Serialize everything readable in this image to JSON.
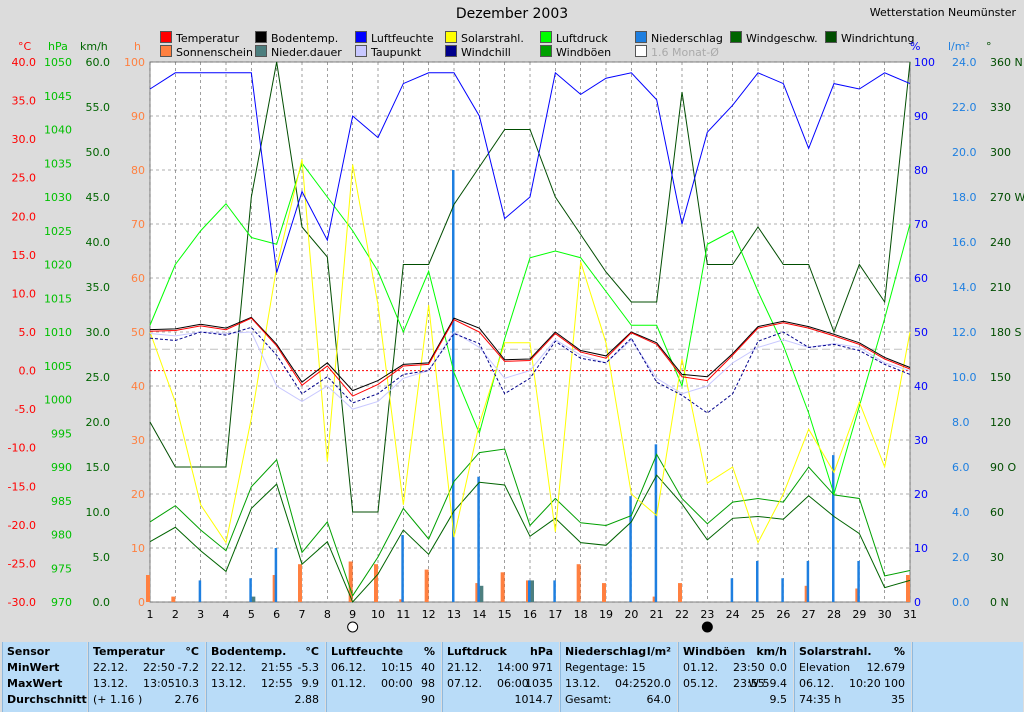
{
  "title": "Dezember 2003",
  "station": "Wetterstation Neumünster",
  "units": {
    "temp": "°C",
    "hpa": "hPa",
    "kmh": "km/h",
    "h": "h",
    "pct": "%",
    "lm2": "l/m²",
    "deg": "°"
  },
  "legend": [
    {
      "label": "Temperatur",
      "color": "#ff0000"
    },
    {
      "label": "Bodentemp.",
      "color": "#000000"
    },
    {
      "label": "Luftfeuchte",
      "color": "#0000ff"
    },
    {
      "label": "Solarstrahl.",
      "color": "#ffff00"
    },
    {
      "label": "Luftdruck",
      "color": "#00ff00"
    },
    {
      "label": "Niederschlag",
      "color": "#1e7fe0"
    },
    {
      "label": "Windgeschw.",
      "color": "#006400"
    },
    {
      "label": "Windrichtung",
      "color": "#004d00"
    },
    {
      "label": "Sonnenschein",
      "color": "#ff8040"
    },
    {
      "label": "Nieder.dauer",
      "color": "#4d7f7f"
    },
    {
      "label": "Taupunkt",
      "color": "#c8c8ff"
    },
    {
      "label": "Windchill",
      "color": "#00008b"
    },
    {
      "label": "Windböen",
      "color": "#00a000"
    },
    {
      "label": "1.6 Monat-Ø",
      "color": "#ffffff"
    }
  ],
  "axes": {
    "temp_ticks": [
      "40.0",
      "35.0",
      "30.0",
      "25.0",
      "20.0",
      "15.0",
      "10.0",
      "5.0",
      "0.0",
      "-5.0",
      "-10.0",
      "-15.0",
      "-20.0",
      "-25.0",
      "-30.0"
    ],
    "hpa_ticks": [
      "1050",
      "1045",
      "1040",
      "1035",
      "1030",
      "1025",
      "1020",
      "1015",
      "1010",
      "1005",
      "1000",
      "995",
      "990",
      "985",
      "980",
      "975",
      "970"
    ],
    "kmh_ticks": [
      "60.0",
      "55.0",
      "50.0",
      "45.0",
      "40.0",
      "35.0",
      "30.0",
      "25.0",
      "20.0",
      "15.0",
      "10.0",
      "5.0",
      "0.0"
    ],
    "h_ticks": [
      "100",
      "90",
      "80",
      "70",
      "60",
      "50",
      "40",
      "30",
      "20",
      "10",
      "0"
    ],
    "pct_ticks": [
      "100",
      "90",
      "80",
      "70",
      "60",
      "50",
      "40",
      "30",
      "20",
      "10",
      "0"
    ],
    "lm2_ticks": [
      "24.0",
      "22.0",
      "20.0",
      "18.0",
      "16.0",
      "14.0",
      "12.0",
      "10.0",
      "8.0",
      "6.0",
      "4.0",
      "2.0",
      "0.0"
    ],
    "deg_ticks": [
      "360 N",
      "330",
      "300",
      "270 W",
      "240",
      "210",
      "180 S",
      "150",
      "120",
      "90 O",
      "60",
      "30",
      "0 N"
    ],
    "x_ticks": [
      "1",
      "2",
      "3",
      "4",
      "5",
      "6",
      "7",
      "8",
      "9",
      "10",
      "11",
      "12",
      "13",
      "14",
      "15",
      "16",
      "17",
      "18",
      "19",
      "20",
      "21",
      "22",
      "23",
      "24",
      "25",
      "26",
      "27",
      "28",
      "29",
      "30",
      "31"
    ]
  },
  "chart_data": {
    "type": "line",
    "x": [
      1,
      2,
      3,
      4,
      5,
      6,
      7,
      8,
      9,
      10,
      11,
      12,
      13,
      14,
      15,
      16,
      17,
      18,
      19,
      20,
      21,
      22,
      23,
      24,
      25,
      26,
      27,
      28,
      29,
      30,
      31
    ],
    "xlim": [
      1,
      31
    ],
    "series": [
      {
        "name": "Temperatur",
        "axis": "°C",
        "ylim": [
          -30,
          40
        ],
        "color": "#ff0000",
        "values": [
          5.1,
          5.2,
          5.8,
          5.3,
          6.8,
          3.2,
          -1.9,
          0.6,
          -3.3,
          -1.8,
          0.6,
          0.8,
          6.6,
          5.0,
          1.2,
          1.3,
          4.8,
          2.4,
          1.6,
          4.9,
          3.4,
          -0.8,
          -1.3,
          2.0,
          5.5,
          6.2,
          5.5,
          4.5,
          3.4,
          1.5,
          0.2
        ]
      },
      {
        "name": "Bodentemp.",
        "axis": "°C",
        "ylim": [
          -30,
          40
        ],
        "color": "#000000",
        "values": [
          5.3,
          5.4,
          6.0,
          5.5,
          6.9,
          3.4,
          -1.5,
          1.0,
          -2.6,
          -1.3,
          0.8,
          1.0,
          6.8,
          5.5,
          1.4,
          1.5,
          5.0,
          2.6,
          1.9,
          5.0,
          3.6,
          -0.5,
          -0.8,
          2.2,
          5.7,
          6.4,
          5.7,
          4.7,
          3.6,
          1.7,
          0.4
        ]
      },
      {
        "name": "Taupunkt",
        "axis": "°C",
        "ylim": [
          -30,
          40
        ],
        "color": "#c8c8ff",
        "values": [
          4.8,
          4.5,
          5.0,
          4.8,
          5.0,
          -2.0,
          -4.0,
          -2.0,
          -5.0,
          -4.0,
          -1.0,
          0.0,
          5.0,
          3.0,
          -1.0,
          0.0,
          4.0,
          2.0,
          1.0,
          4.0,
          -1.0,
          -3.0,
          -2.0,
          1.0,
          3.0,
          4.0,
          3.0,
          3.5,
          3.0,
          1.0,
          0.0
        ]
      },
      {
        "name": "Windchill",
        "axis": "°C",
        "ylim": [
          -30,
          40
        ],
        "color": "#00008b",
        "values": [
          4.2,
          3.9,
          5.0,
          4.6,
          5.6,
          2.0,
          -3.0,
          -0.8,
          -4.2,
          -3.0,
          -0.5,
          0.0,
          4.8,
          3.5,
          -3.0,
          -1.0,
          3.8,
          1.6,
          1.0,
          4.2,
          -1.5,
          -3.2,
          -5.5,
          -3.0,
          3.8,
          5.0,
          3.0,
          3.4,
          2.6,
          0.8,
          -0.5
        ]
      },
      {
        "name": "Luftfeuchte",
        "axis": "%",
        "ylim": [
          0,
          100
        ],
        "color": "#0000ff",
        "values": [
          95,
          98,
          98,
          98,
          98,
          61,
          76,
          67,
          90,
          86,
          96,
          98,
          98,
          90,
          71,
          75,
          98,
          94,
          97,
          98,
          93,
          70,
          87,
          92,
          98,
          96,
          84,
          96,
          95,
          98,
          96
        ]
      },
      {
        "name": "Solarstrahl.",
        "axis": "%",
        "ylim": [
          0,
          100
        ],
        "color": "#ffff00",
        "values": [
          50,
          37,
          18,
          11,
          34,
          62,
          82,
          26,
          81,
          55,
          18,
          55,
          12,
          33,
          48,
          48,
          13,
          63,
          48,
          20,
          16,
          45,
          22,
          25,
          11,
          20,
          32,
          24,
          37,
          25,
          50
        ]
      },
      {
        "name": "Luftdruck",
        "axis": "hPa",
        "ylim": [
          970,
          1050
        ],
        "color": "#00ff00",
        "values": [
          1011,
          1020,
          1025,
          1029,
          1024,
          1023,
          1035,
          1030,
          1025,
          1019,
          1010,
          1019,
          1004,
          995,
          1009,
          1021,
          1022,
          1021,
          1016,
          1011,
          1011,
          1002,
          1023,
          1025,
          1016,
          1008,
          998,
          986,
          999,
          1012,
          1026
        ]
      },
      {
        "name": "Windgeschw.",
        "axis": "km/h",
        "ylim": [
          0,
          60
        ],
        "color": "#006400",
        "values": [
          6.7,
          8.3,
          5.7,
          3.4,
          10.4,
          13.1,
          4.2,
          6.7,
          0.0,
          3.1,
          8.0,
          5.3,
          10.1,
          13.3,
          13.0,
          7.3,
          9.3,
          6.6,
          6.3,
          8.9,
          14.1,
          10.9,
          6.9,
          9.3,
          9.5,
          9.2,
          11.8,
          9.5,
          7.6,
          1.6,
          2.4
        ]
      },
      {
        "name": "Windböen",
        "axis": "km/h",
        "ylim": [
          0,
          60
        ],
        "color": "#00a000",
        "values": [
          8.9,
          10.7,
          8.0,
          5.7,
          12.8,
          15.8,
          5.5,
          8.9,
          0.7,
          5.0,
          10.4,
          7.0,
          13.4,
          16.6,
          17.0,
          8.5,
          11.5,
          8.8,
          8.5,
          9.6,
          16.4,
          11.5,
          8.7,
          11.1,
          11.5,
          11.1,
          15.0,
          11.9,
          11.5,
          2.9,
          3.5
        ]
      },
      {
        "name": "Windrichtung",
        "axis": "°",
        "ylim": [
          0,
          360
        ],
        "color": "#004d00",
        "values": [
          120,
          90,
          90,
          90,
          270,
          360,
          250,
          230,
          60,
          60,
          225,
          225,
          265,
          290,
          315,
          315,
          270,
          245,
          220,
          200,
          200,
          340,
          225,
          225,
          250,
          225,
          225,
          180,
          225,
          200,
          360
        ]
      },
      {
        "name": "Niederschlag",
        "axis": "l/m²",
        "ylim": [
          0,
          25
        ],
        "type": "bar",
        "color": "#1e7fe0",
        "values": [
          0,
          0,
          1.0,
          0,
          1.1,
          2.5,
          0,
          0,
          0,
          0,
          3.1,
          0,
          20.0,
          5.8,
          0,
          1.0,
          1.0,
          0,
          0,
          4.9,
          7.3,
          0,
          0,
          1.1,
          1.9,
          1.1,
          1.9,
          6.8,
          1.9,
          0,
          0
        ]
      },
      {
        "name": "Sonnenschein",
        "axis": "h",
        "ylim": [
          0,
          100
        ],
        "type": "bar",
        "color": "#ff8040",
        "values": [
          5,
          1,
          0,
          0,
          0,
          5,
          7,
          0,
          7.5,
          7,
          0.5,
          6,
          0,
          3.5,
          5.5,
          4,
          0,
          7,
          3.5,
          0,
          1,
          3.5,
          0,
          0,
          0,
          0,
          3,
          0,
          2.5,
          0,
          5
        ]
      },
      {
        "name": "Nieder.dauer",
        "axis": "h",
        "ylim": [
          0,
          100
        ],
        "type": "bar",
        "color": "#4d7f7f",
        "values": [
          0,
          0,
          0,
          0,
          1,
          0,
          0,
          0,
          0,
          0,
          0,
          0,
          0,
          3,
          0,
          4,
          0,
          0,
          0,
          0,
          0,
          0,
          0,
          0,
          0,
          0,
          0,
          0,
          0,
          0,
          0
        ]
      }
    ],
    "reference_lines": [
      {
        "axis": "°C",
        "value": 0,
        "color": "#ff0000",
        "style": "dotted"
      },
      {
        "axis": "°C",
        "value": 2.76,
        "color": "#c0c0c0",
        "style": "dashed"
      }
    ],
    "moon_phases": [
      {
        "day": 9,
        "phase": "full"
      },
      {
        "day": 23,
        "phase": "new"
      }
    ]
  },
  "table": [
    {
      "header": [
        "Sensor",
        "",
        ""
      ],
      "rows": [
        [
          "MinWert",
          "",
          ""
        ],
        [
          "MaxWert",
          "",
          ""
        ],
        [
          "Durchschnitt",
          "",
          ""
        ]
      ]
    },
    {
      "header": [
        "Temperatur",
        "",
        "°C"
      ],
      "rows": [
        [
          "22.12.",
          "22:50",
          "-7.2"
        ],
        [
          "13.12.",
          "13:05",
          "10.3"
        ],
        [
          "(+ 1.16 )",
          "",
          "2.76"
        ]
      ]
    },
    {
      "header": [
        "Bodentemp.",
        "",
        "°C"
      ],
      "rows": [
        [
          "22.12.",
          "21:55",
          "-5.3"
        ],
        [
          "13.12.",
          "12:55",
          "9.9"
        ],
        [
          "",
          "",
          "2.88"
        ]
      ]
    },
    {
      "header": [
        "Luftfeuchte",
        "",
        "%"
      ],
      "rows": [
        [
          "06.12.",
          "10:15",
          "40"
        ],
        [
          "01.12.",
          "00:00",
          "98"
        ],
        [
          "",
          "",
          "90"
        ]
      ]
    },
    {
      "header": [
        "Luftdruck",
        "",
        "hPa"
      ],
      "rows": [
        [
          "21.12.",
          "14:00",
          "971"
        ],
        [
          "07.12.",
          "06:00",
          "1035"
        ],
        [
          "",
          "",
          "1014.7"
        ]
      ]
    },
    {
      "header": [
        "Niederschlag",
        "",
        "l/m²"
      ],
      "rows": [
        [
          "Regentage: 15",
          "",
          ""
        ],
        [
          "13.12.",
          "04:25",
          "20.0"
        ],
        [
          "Gesamt:",
          "",
          "64.0"
        ]
      ]
    },
    {
      "header": [
        "Windböen",
        "",
        "km/h"
      ],
      "rows": [
        [
          "01.12.",
          "23:50",
          "0.0"
        ],
        [
          "05.12.",
          "23:55",
          "W 59.4"
        ],
        [
          "",
          "",
          "9.5"
        ]
      ]
    },
    {
      "header": [
        "Solarstrahl.",
        "",
        "%"
      ],
      "rows": [
        [
          "Elevation",
          "",
          "12.679"
        ],
        [
          "06.12.",
          "10:20",
          "100"
        ],
        [
          "74:35 h",
          "",
          "35"
        ]
      ]
    }
  ]
}
